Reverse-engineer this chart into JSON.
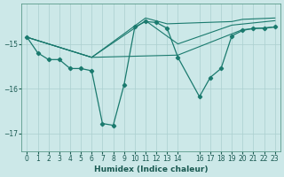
{
  "xlabel": "Humidex (Indice chaleur)",
  "bg_color": "#cce8e8",
  "line_color": "#1a7a6e",
  "grid_color": "#aacfcf",
  "ylim": [
    -17.4,
    -14.1
  ],
  "xlim": [
    -0.5,
    23.5
  ],
  "yticks": [
    -15,
    -16,
    -17
  ],
  "xticks": [
    0,
    1,
    2,
    3,
    4,
    5,
    6,
    7,
    8,
    9,
    10,
    11,
    12,
    13,
    14,
    16,
    17,
    18,
    19,
    20,
    21,
    22,
    23
  ],
  "series": {
    "main_x": [
      0,
      1,
      2,
      3,
      4,
      5,
      6,
      7,
      8,
      9,
      10,
      11,
      12,
      13,
      14,
      16,
      17,
      18,
      19,
      20,
      21,
      22,
      23
    ],
    "main_y": [
      -14.85,
      -15.2,
      -15.35,
      -15.35,
      -15.55,
      -15.55,
      -15.6,
      -16.78,
      -16.82,
      -15.92,
      -14.62,
      -14.5,
      -14.52,
      -14.65,
      -15.3,
      -16.18,
      -15.75,
      -15.55,
      -14.82,
      -14.7,
      -14.65,
      -14.65,
      -14.62
    ],
    "line2_x": [
      0,
      6,
      14,
      20,
      23
    ],
    "line2_y": [
      -14.85,
      -15.3,
      -15.25,
      -14.68,
      -14.62
    ],
    "line3_x": [
      0,
      6,
      11,
      14,
      19,
      23
    ],
    "line3_y": [
      -14.85,
      -15.3,
      -14.48,
      -15.0,
      -14.58,
      -14.48
    ],
    "line4_x": [
      0,
      6,
      11,
      13,
      19,
      20,
      23
    ],
    "line4_y": [
      -14.85,
      -15.3,
      -14.42,
      -14.55,
      -14.5,
      -14.45,
      -14.42
    ]
  }
}
